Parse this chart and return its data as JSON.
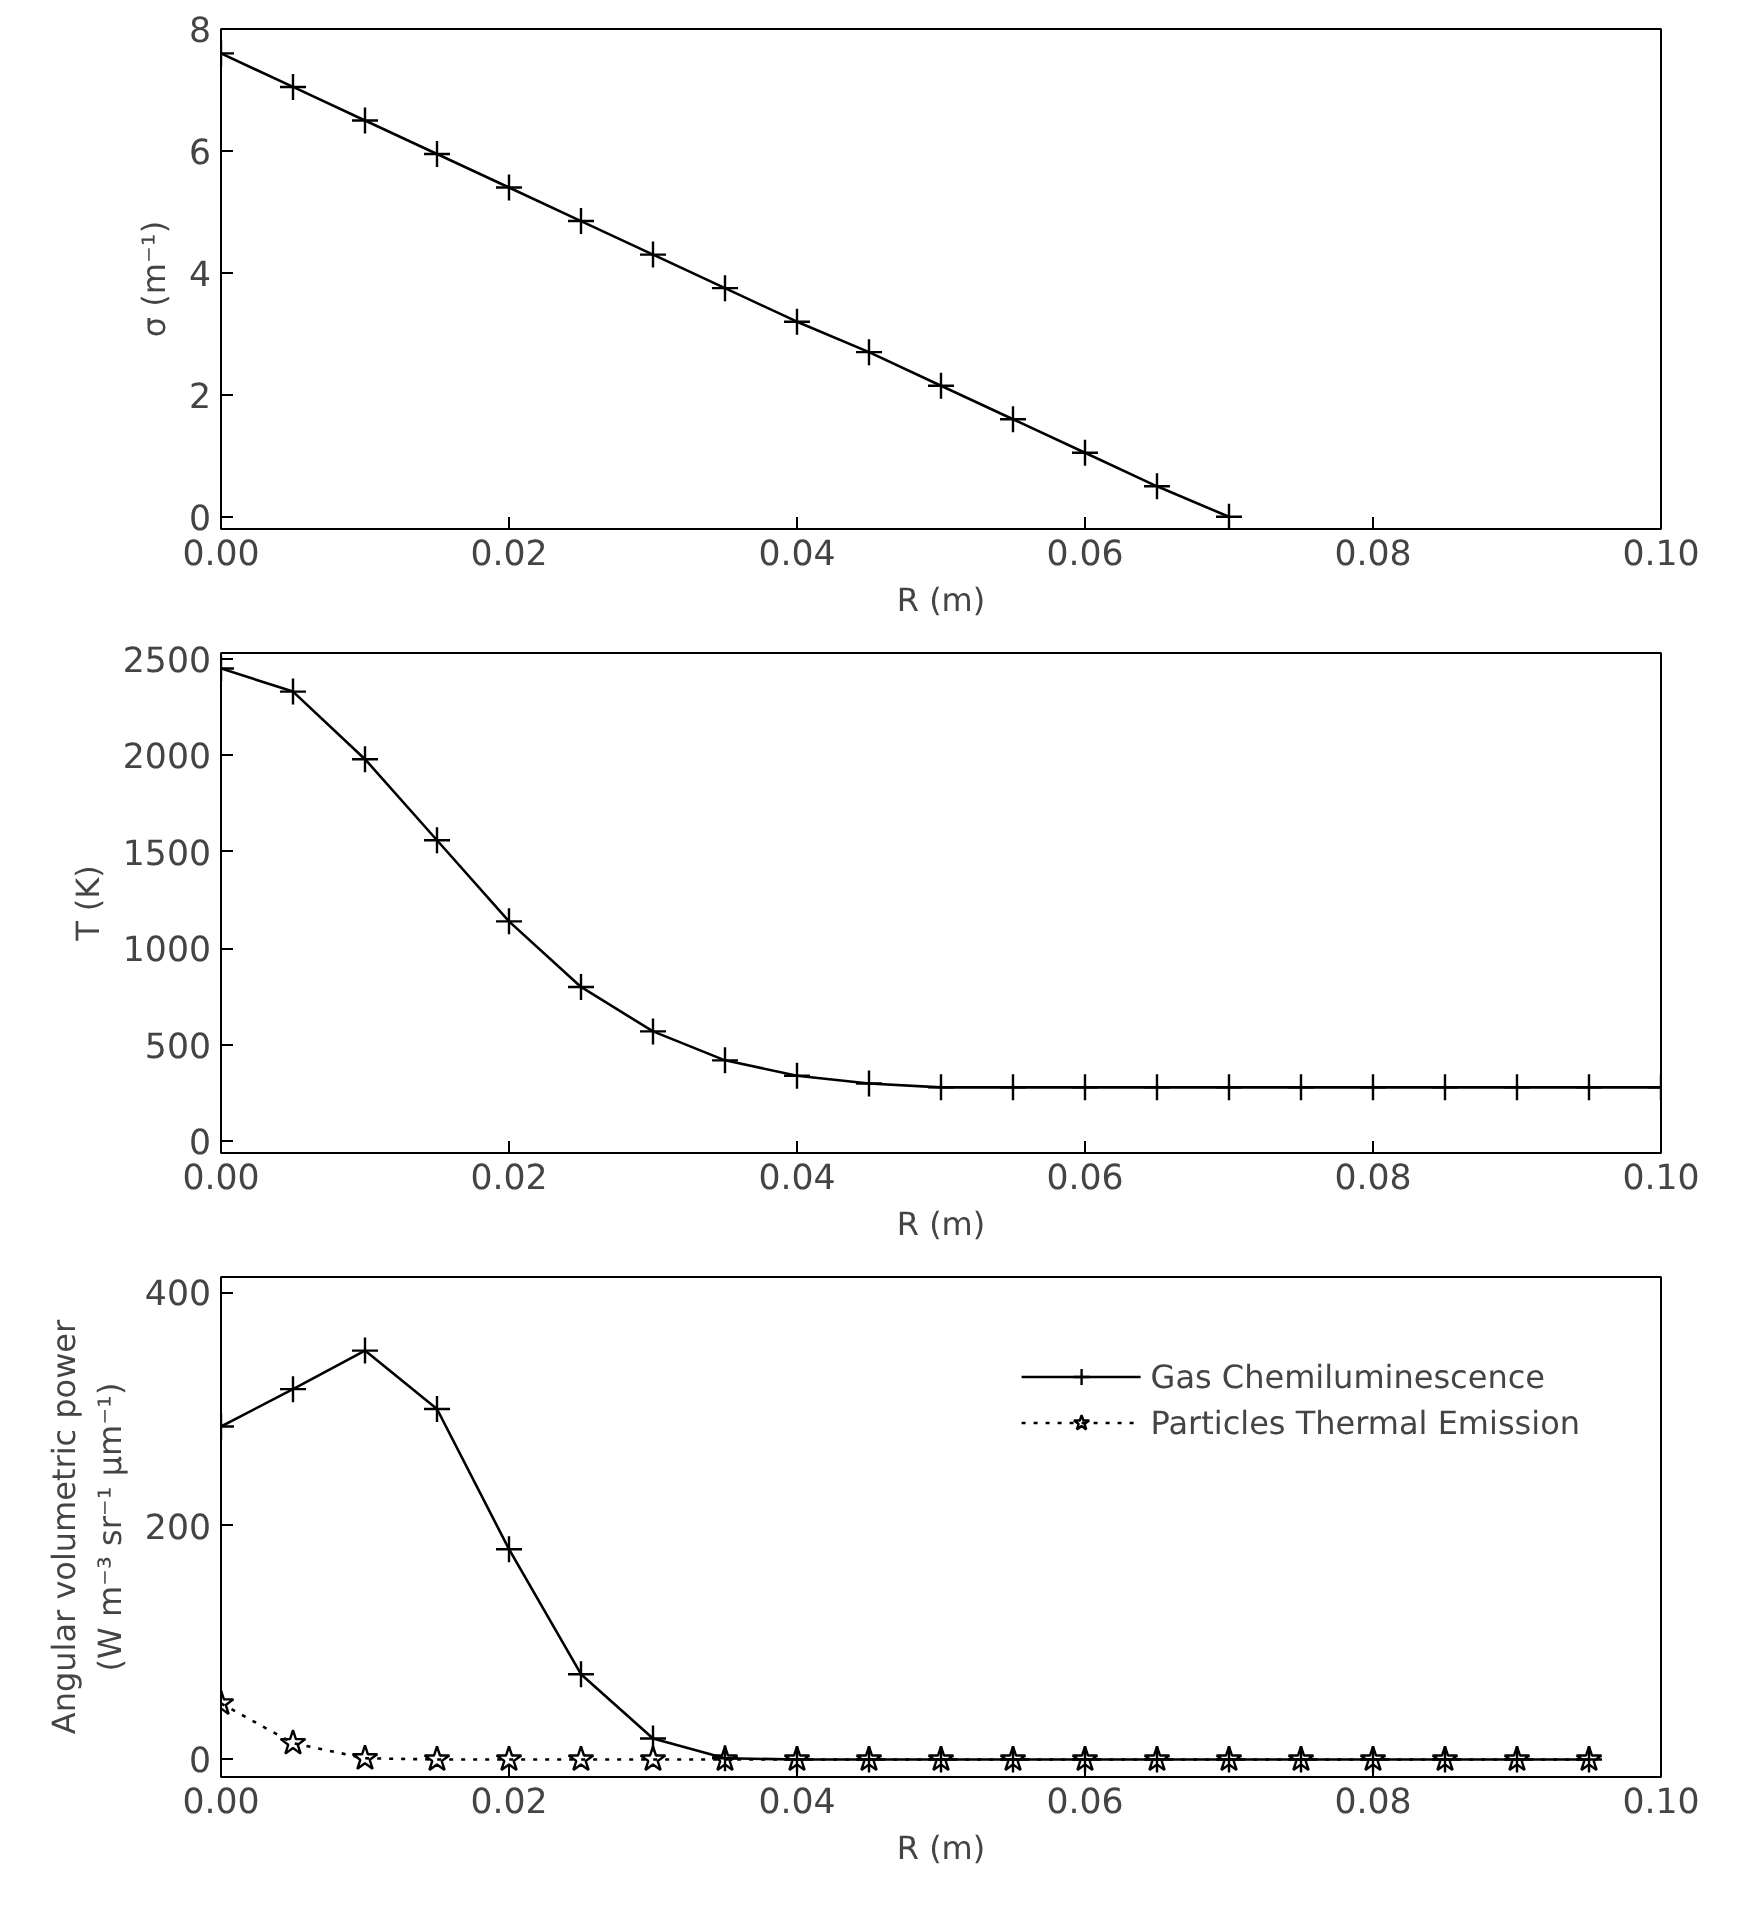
{
  "chart_data": [
    {
      "type": "line",
      "xlabel": "R (m)",
      "ylabel": "σ (m⁻¹)",
      "xlim": [
        0,
        0.1
      ],
      "ylim": [
        -0.2,
        8
      ],
      "xticks": [
        {
          "value": 0,
          "label": "0.00"
        },
        {
          "value": 0.02,
          "label": "0.02"
        },
        {
          "value": 0.04,
          "label": "0.04"
        },
        {
          "value": 0.06,
          "label": "0.06"
        },
        {
          "value": 0.08,
          "label": "0.08"
        },
        {
          "value": 0.1,
          "label": "0.10"
        }
      ],
      "yticks": [
        0,
        2,
        4,
        6,
        8
      ],
      "grid": false,
      "legend": false,
      "marker": "cross",
      "line_style": "solid",
      "x": [
        0,
        0.005,
        0.01,
        0.015,
        0.02,
        0.025,
        0.03,
        0.035,
        0.04,
        0.045,
        0.05,
        0.055,
        0.06,
        0.065,
        0.07
      ],
      "series": [
        {
          "color": "#000000",
          "values": [
            7.6,
            7.05,
            6.5,
            5.95,
            5.4,
            4.85,
            4.3,
            3.75,
            3.2,
            2.7,
            2.15,
            1.6,
            1.05,
            0.5,
            0
          ]
        }
      ]
    },
    {
      "type": "line",
      "xlabel": "R (m)",
      "ylabel": "T (K)",
      "xlim": [
        0,
        0.1
      ],
      "ylim": [
        -60,
        2530
      ],
      "xticks": [
        {
          "value": 0,
          "label": "0.00"
        },
        {
          "value": 0.02,
          "label": "0.02"
        },
        {
          "value": 0.04,
          "label": "0.04"
        },
        {
          "value": 0.06,
          "label": "0.06"
        },
        {
          "value": 0.08,
          "label": "0.08"
        },
        {
          "value": 0.1,
          "label": "0.10"
        }
      ],
      "yticks": [
        0,
        500,
        1000,
        1500,
        2000,
        2500
      ],
      "grid": false,
      "legend": false,
      "marker": "cross",
      "line_style": "solid",
      "x": [
        0,
        0.005,
        0.01,
        0.015,
        0.02,
        0.025,
        0.03,
        0.035,
        0.04,
        0.045,
        0.05,
        0.055,
        0.06,
        0.065,
        0.07,
        0.075,
        0.08,
        0.085,
        0.09,
        0.095,
        0.1
      ],
      "series": [
        {
          "color": "#000000",
          "values": [
            2450,
            2330,
            1980,
            1560,
            1140,
            800,
            570,
            420,
            340,
            300,
            280,
            280,
            280,
            280,
            280,
            280,
            280,
            280,
            280,
            280,
            280
          ]
        }
      ]
    },
    {
      "type": "line",
      "xlabel": "R (m)",
      "ylabel": "Angular volumetric power\n(W m⁻³ sr⁻¹ μm⁻¹)",
      "xlim": [
        0,
        0.1
      ],
      "ylim": [
        -15,
        413
      ],
      "xticks": [
        {
          "value": 0,
          "label": "0.00"
        },
        {
          "value": 0.02,
          "label": "0.02"
        },
        {
          "value": 0.04,
          "label": "0.04"
        },
        {
          "value": 0.06,
          "label": "0.06"
        },
        {
          "value": 0.08,
          "label": "0.08"
        },
        {
          "value": 0.1,
          "label": "0.10"
        }
      ],
      "yticks": [
        0,
        200,
        400
      ],
      "grid": false,
      "legend": "top right",
      "x": [
        0,
        0.005,
        0.01,
        0.015,
        0.02,
        0.025,
        0.03,
        0.035,
        0.04,
        0.045,
        0.05,
        0.055,
        0.06,
        0.065,
        0.07,
        0.075,
        0.08,
        0.085,
        0.09,
        0.095
      ],
      "series": [
        {
          "name": "Gas Chemiluminescence",
          "color": "#000000",
          "marker": "cross",
          "line_style": "solid",
          "values": [
            285,
            317,
            350,
            300,
            180,
            73,
            18,
            1,
            0,
            0,
            0,
            0,
            0,
            0,
            0,
            0,
            0,
            0,
            0,
            0
          ]
        },
        {
          "name": "Particles Thermal Emission",
          "color": "#000000",
          "marker": "star",
          "line_style": "dotted",
          "values": [
            48,
            14,
            1,
            0,
            0,
            0,
            0,
            0,
            0,
            0,
            0,
            0,
            0,
            0,
            0,
            0,
            0,
            0,
            0,
            0
          ]
        }
      ]
    }
  ]
}
